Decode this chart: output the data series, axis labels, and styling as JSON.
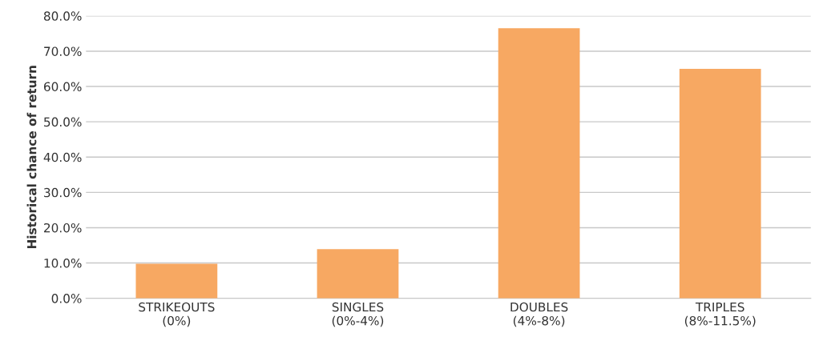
{
  "chart_data": {
    "type": "bar",
    "ylabel": "Historical chance of return",
    "categories": [
      "STRIKEOUTS\n(0%)",
      "SINGLES\n(0%-4%)",
      "DOUBLES\n(4%-8%)",
      "TRIPLES\n(8%-11.5%)"
    ],
    "values": [
      9.8,
      13.9,
      76.5,
      65.0
    ],
    "color": "#f7a862",
    "ylim": [
      0,
      80
    ],
    "yticks": [
      {
        "value": 0,
        "label": "0.0%"
      },
      {
        "value": 10,
        "label": "10.0%"
      },
      {
        "value": 20,
        "label": "20.0%"
      },
      {
        "value": 30,
        "label": "30.0%"
      },
      {
        "value": 40,
        "label": "40.0%"
      },
      {
        "value": 50,
        "label": "50.0%"
      },
      {
        "value": 60,
        "label": "60.0%"
      },
      {
        "value": 70,
        "label": "70.0%"
      },
      {
        "value": 80,
        "label": "80.0%"
      }
    ],
    "grid": "y"
  }
}
